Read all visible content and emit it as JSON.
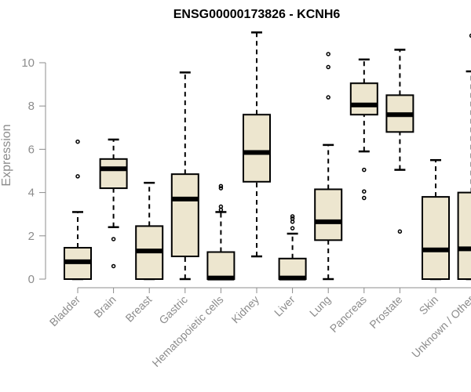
{
  "chart_data": {
    "type": "boxplot",
    "title": "ENSG00000173826 - KCNH6",
    "xlabel": "",
    "ylabel": "Expression",
    "ylim": [
      0,
      11.5
    ],
    "yticks": [
      0,
      2,
      4,
      6,
      8,
      10
    ],
    "categories": [
      "Bladder",
      "Brain",
      "Breast",
      "Gastric",
      "Hematopoietic cells",
      "Kidney",
      "Liver",
      "Lung",
      "Pancreas",
      "Prostate",
      "Skin",
      "Unknown / Other"
    ],
    "boxes": [
      {
        "category": "Bladder",
        "whisker_low": 0.0,
        "q1": 0.0,
        "median": 0.8,
        "q3": 1.45,
        "whisker_high": 3.1,
        "outliers": [
          4.75,
          6.35
        ]
      },
      {
        "category": "Brain",
        "whisker_low": 2.4,
        "q1": 4.2,
        "median": 5.1,
        "q3": 5.55,
        "whisker_high": 6.45,
        "outliers": [
          0.6,
          1.85
        ]
      },
      {
        "category": "Breast",
        "whisker_low": 0.0,
        "q1": 0.0,
        "median": 1.3,
        "q3": 2.45,
        "whisker_high": 4.45,
        "outliers": []
      },
      {
        "category": "Gastric",
        "whisker_low": 0.0,
        "q1": 1.05,
        "median": 3.7,
        "q3": 4.85,
        "whisker_high": 9.55,
        "outliers": []
      },
      {
        "category": "Hematopoietic cells",
        "whisker_low": 0.0,
        "q1": 0.0,
        "median": 0.05,
        "q3": 1.25,
        "whisker_high": 3.1,
        "outliers": [
          3.2,
          3.35,
          4.2,
          4.3
        ]
      },
      {
        "category": "Kidney",
        "whisker_low": 1.05,
        "q1": 4.5,
        "median": 5.85,
        "q3": 7.6,
        "whisker_high": 11.4,
        "outliers": []
      },
      {
        "category": "Liver",
        "whisker_low": 0.0,
        "q1": 0.0,
        "median": 0.05,
        "q3": 0.95,
        "whisker_high": 2.1,
        "outliers": [
          2.35,
          2.65,
          2.8,
          2.9
        ]
      },
      {
        "category": "Lung",
        "whisker_low": 0.0,
        "q1": 1.8,
        "median": 2.65,
        "q3": 4.15,
        "whisker_high": 6.2,
        "outliers": [
          8.4,
          9.8,
          10.4
        ]
      },
      {
        "category": "Pancreas",
        "whisker_low": 5.9,
        "q1": 7.6,
        "median": 8.05,
        "q3": 9.05,
        "whisker_high": 10.15,
        "outliers": [
          3.75,
          4.05,
          5.05
        ]
      },
      {
        "category": "Prostate",
        "whisker_low": 5.05,
        "q1": 6.8,
        "median": 7.6,
        "q3": 8.5,
        "whisker_high": 10.6,
        "outliers": [
          2.2
        ]
      },
      {
        "category": "Skin",
        "whisker_low": 0.0,
        "q1": 0.0,
        "median": 1.35,
        "q3": 3.8,
        "whisker_high": 5.5,
        "outliers": []
      },
      {
        "category": "Unknown / Other",
        "whisker_low": 0.0,
        "q1": 0.0,
        "median": 1.4,
        "q3": 4.0,
        "whisker_high": 9.6,
        "outliers": [
          11.25
        ]
      }
    ],
    "box_fill": "#ede6cf",
    "line_color": "#000000",
    "axis_color": "#8c8c8c",
    "grid": false
  }
}
